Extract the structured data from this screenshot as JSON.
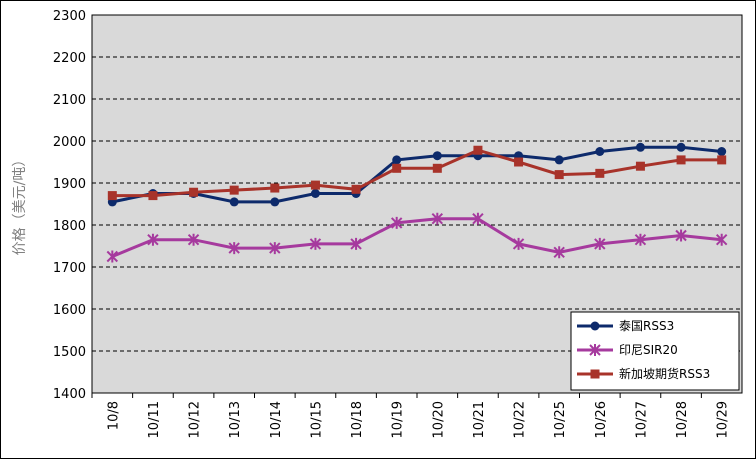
{
  "chart_data": {
    "type": "line",
    "y_label": "价格（美元/吨）",
    "categories": [
      "10/8",
      "10/11",
      "10/12",
      "10/13",
      "10/14",
      "10/15",
      "10/18",
      "10/19",
      "10/20",
      "10/21",
      "10/22",
      "10/25",
      "10/26",
      "10/27",
      "10/28",
      "10/29"
    ],
    "series": [
      {
        "name": "泰国RSS3",
        "color": "#0d2a6b",
        "marker": "circle",
        "values": [
          1855,
          1875,
          1875,
          1855,
          1855,
          1875,
          1875,
          1955,
          1965,
          1965,
          1965,
          1955,
          1975,
          1985,
          1985,
          1975
        ]
      },
      {
        "name": "印尼SIR20",
        "color": "#a63a9e",
        "marker": "star",
        "values": [
          1725,
          1765,
          1765,
          1745,
          1745,
          1755,
          1755,
          1805,
          1815,
          1815,
          1755,
          1735,
          1755,
          1765,
          1775,
          1765
        ]
      },
      {
        "name": "新加坡期货RSS3",
        "color": "#a8332a",
        "marker": "square",
        "values": [
          1870,
          1870,
          1878,
          1883,
          1888,
          1895,
          1885,
          1935,
          1935,
          1978,
          1950,
          1920,
          1923,
          1940,
          1955,
          1955
        ]
      }
    ],
    "ylim": [
      1400,
      2300
    ],
    "yticks": [
      1400,
      1500,
      1600,
      1700,
      1800,
      1900,
      2000,
      2100,
      2200,
      2300
    ],
    "grid": true,
    "legend": "lower-right"
  }
}
